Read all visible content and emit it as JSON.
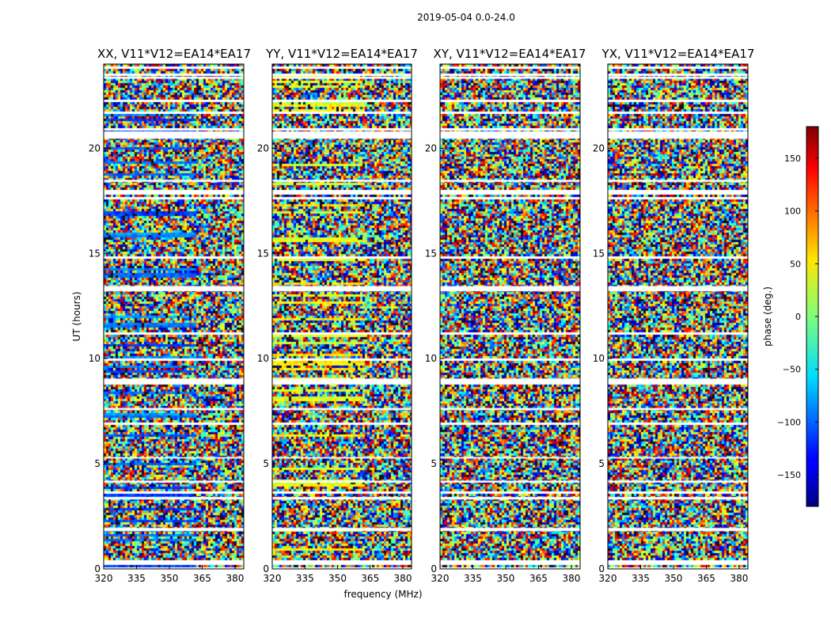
{
  "chart_data": {
    "type": "heatmap",
    "suptitle": "2019-05-04 0.0-24.0",
    "xlabel": "frequency (MHz)",
    "ylabel": "UT (hours)",
    "xlim": [
      320,
      384
    ],
    "ylim": [
      0,
      24
    ],
    "xticks": [
      "320",
      "335",
      "350",
      "365",
      "380"
    ],
    "xtick_values": [
      320,
      335,
      350,
      365,
      380
    ],
    "yticks": [
      "0",
      "5",
      "10",
      "15",
      "20"
    ],
    "ytick_values": [
      0,
      5,
      10,
      15,
      20
    ],
    "panels": [
      {
        "title": "XX, V11*V12=EA14*EA17",
        "baseline_phase_deg": -100,
        "coherent": true
      },
      {
        "title": "YY, V11*V12=EA14*EA17",
        "baseline_phase_deg": 40,
        "coherent": true
      },
      {
        "title": "XY, V11*V12=EA14*EA17",
        "baseline_phase_deg": null,
        "coherent": false
      },
      {
        "title": "YX, V11*V12=EA14*EA17",
        "baseline_phase_deg": null,
        "coherent": false
      }
    ],
    "flagged_ut_ranges_hours": [
      [
        1.8,
        1.95
      ],
      [
        3.3,
        3.42
      ],
      [
        4.1,
        4.2
      ],
      [
        5.25,
        5.32
      ],
      [
        7.55,
        7.65
      ],
      [
        8.9,
        9.05
      ],
      [
        13.2,
        13.45
      ],
      [
        18.4,
        18.5
      ],
      [
        20.45,
        20.8
      ],
      [
        23.3,
        23.4
      ]
    ],
    "colorbar": {
      "label": "phase (deg.)",
      "range": [
        -180,
        180
      ],
      "ticks": [
        "150",
        "100",
        "50",
        "0",
        "−50",
        "−100",
        "−150"
      ],
      "tick_values": [
        150,
        100,
        50,
        0,
        -50,
        -100,
        -150
      ],
      "colormap": "jet"
    }
  }
}
